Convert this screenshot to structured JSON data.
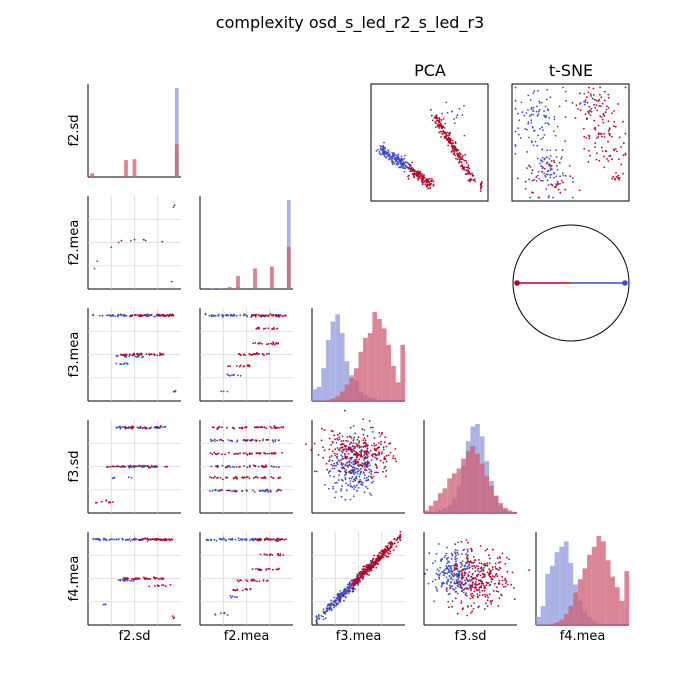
{
  "title": "complexity osd_s_led_r2_s_led_r3",
  "colors": {
    "blue": "#3b4cc0",
    "red": "#b40426",
    "blue_hist": "#8d99da",
    "red_hist": "#cd5d72",
    "grid": "#d9d9d9"
  },
  "chart_data": {
    "type": "scatter",
    "title": "complexity osd_s_led_r2_s_led_r3",
    "variables": [
      "f2.sd",
      "f2.mea",
      "f3.mea",
      "f3.sd",
      "f4.mea"
    ],
    "classes": [
      "blue",
      "red"
    ],
    "panels": {
      "pca_title": "PCA",
      "tsne_title": "t-SNE"
    },
    "histograms": {
      "f2.sd": {
        "bins": [
          0.0,
          0.1,
          0.2,
          0.3,
          0.4,
          0.5,
          0.6,
          0.7,
          0.8,
          0.9,
          1.0
        ],
        "blue": [
          0,
          0,
          0,
          0,
          0,
          1,
          0,
          0,
          0,
          0,
          95
        ],
        "red": [
          4,
          0,
          0,
          0,
          18,
          19,
          0,
          0,
          0,
          0,
          35
        ]
      },
      "f2.mea": {
        "bins": [
          0.0,
          0.1,
          0.2,
          0.3,
          0.4,
          0.5,
          0.6,
          0.7,
          0.8,
          0.9,
          1.0
        ],
        "blue": [
          0,
          1,
          1,
          0,
          2,
          0,
          1,
          0,
          0,
          0,
          95
        ],
        "red": [
          0,
          0,
          0,
          2,
          14,
          0,
          22,
          0,
          24,
          0,
          45
        ]
      },
      "f3.mea": {
        "blue": [
          10,
          12,
          28,
          52,
          68,
          74,
          58,
          34,
          22,
          18,
          8,
          5,
          3,
          2,
          1,
          0,
          0,
          0,
          0,
          0
        ],
        "red": [
          0,
          0,
          0,
          1,
          2,
          4,
          8,
          14,
          20,
          28,
          42,
          54,
          58,
          76,
          70,
          62,
          48,
          30,
          16,
          48
        ]
      },
      "f3.sd": {
        "blue": [
          0,
          0,
          1,
          2,
          4,
          6,
          12,
          22,
          38,
          58,
          70,
          72,
          62,
          42,
          26,
          14,
          6,
          3,
          1,
          0
        ],
        "red": [
          2,
          6,
          10,
          16,
          20,
          28,
          32,
          36,
          44,
          50,
          54,
          48,
          40,
          30,
          22,
          14,
          8,
          4,
          2,
          1
        ]
      },
      "f4.mea": {
        "blue": [
          6,
          14,
          38,
          44,
          54,
          58,
          62,
          46,
          30,
          18,
          10,
          6,
          3,
          1,
          0,
          0,
          0,
          0,
          0,
          0
        ],
        "red": [
          0,
          0,
          0,
          1,
          2,
          4,
          8,
          14,
          24,
          34,
          42,
          52,
          58,
          66,
          62,
          48,
          36,
          28,
          18,
          40
        ]
      }
    },
    "correlation_circle": {
      "blue_arrow": [
        0.93,
        0.0
      ],
      "red_arrow": [
        -0.93,
        0.0
      ]
    }
  }
}
